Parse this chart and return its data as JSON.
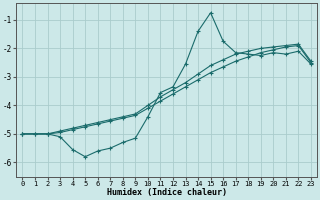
{
  "xlabel": "Humidex (Indice chaleur)",
  "bg_color": "#cce8e8",
  "grid_color": "#aacccc",
  "line_color": "#1a6b6b",
  "xlim": [
    -0.5,
    23.5
  ],
  "ylim": [
    -6.5,
    -0.4
  ],
  "yticks": [
    -6,
    -5,
    -4,
    -3,
    -2,
    -1
  ],
  "xticks": [
    0,
    1,
    2,
    3,
    4,
    5,
    6,
    7,
    8,
    9,
    10,
    11,
    12,
    13,
    14,
    15,
    16,
    17,
    18,
    19,
    20,
    21,
    22,
    23
  ],
  "line1_x": [
    0,
    1,
    2,
    3,
    4,
    5,
    6,
    7,
    8,
    9,
    10,
    11,
    12,
    13,
    14,
    15,
    16,
    17,
    18,
    19,
    20,
    21,
    22,
    23
  ],
  "line1_y": [
    -5.0,
    -5.0,
    -5.0,
    -4.95,
    -4.85,
    -4.75,
    -4.65,
    -4.55,
    -4.45,
    -4.35,
    -4.1,
    -3.85,
    -3.6,
    -3.35,
    -3.1,
    -2.85,
    -2.65,
    -2.45,
    -2.3,
    -2.15,
    -2.05,
    -1.95,
    -1.9,
    -2.5
  ],
  "line2_x": [
    0,
    1,
    2,
    3,
    4,
    5,
    6,
    7,
    8,
    9,
    10,
    11,
    12,
    13,
    14,
    15,
    16,
    17,
    18,
    19,
    20,
    21,
    22,
    23
  ],
  "line2_y": [
    -5.0,
    -5.0,
    -5.0,
    -4.9,
    -4.8,
    -4.7,
    -4.6,
    -4.5,
    -4.4,
    -4.3,
    -4.0,
    -3.7,
    -3.45,
    -3.2,
    -2.9,
    -2.6,
    -2.4,
    -2.2,
    -2.1,
    -2.0,
    -1.95,
    -1.9,
    -1.85,
    -2.45
  ],
  "line3_x": [
    0,
    2,
    3,
    4,
    5,
    6,
    7,
    8,
    9,
    10,
    11,
    12,
    13,
    14,
    15,
    16,
    17,
    18,
    19,
    20,
    21,
    22,
    23
  ],
  "line3_y": [
    -5.0,
    -5.0,
    -5.1,
    -5.55,
    -5.8,
    -5.6,
    -5.5,
    -5.3,
    -5.15,
    -4.4,
    -3.55,
    -3.35,
    -2.55,
    -1.4,
    -0.75,
    -1.75,
    -2.15,
    -2.2,
    -2.25,
    -2.15,
    -2.2,
    -2.1,
    -2.55
  ]
}
